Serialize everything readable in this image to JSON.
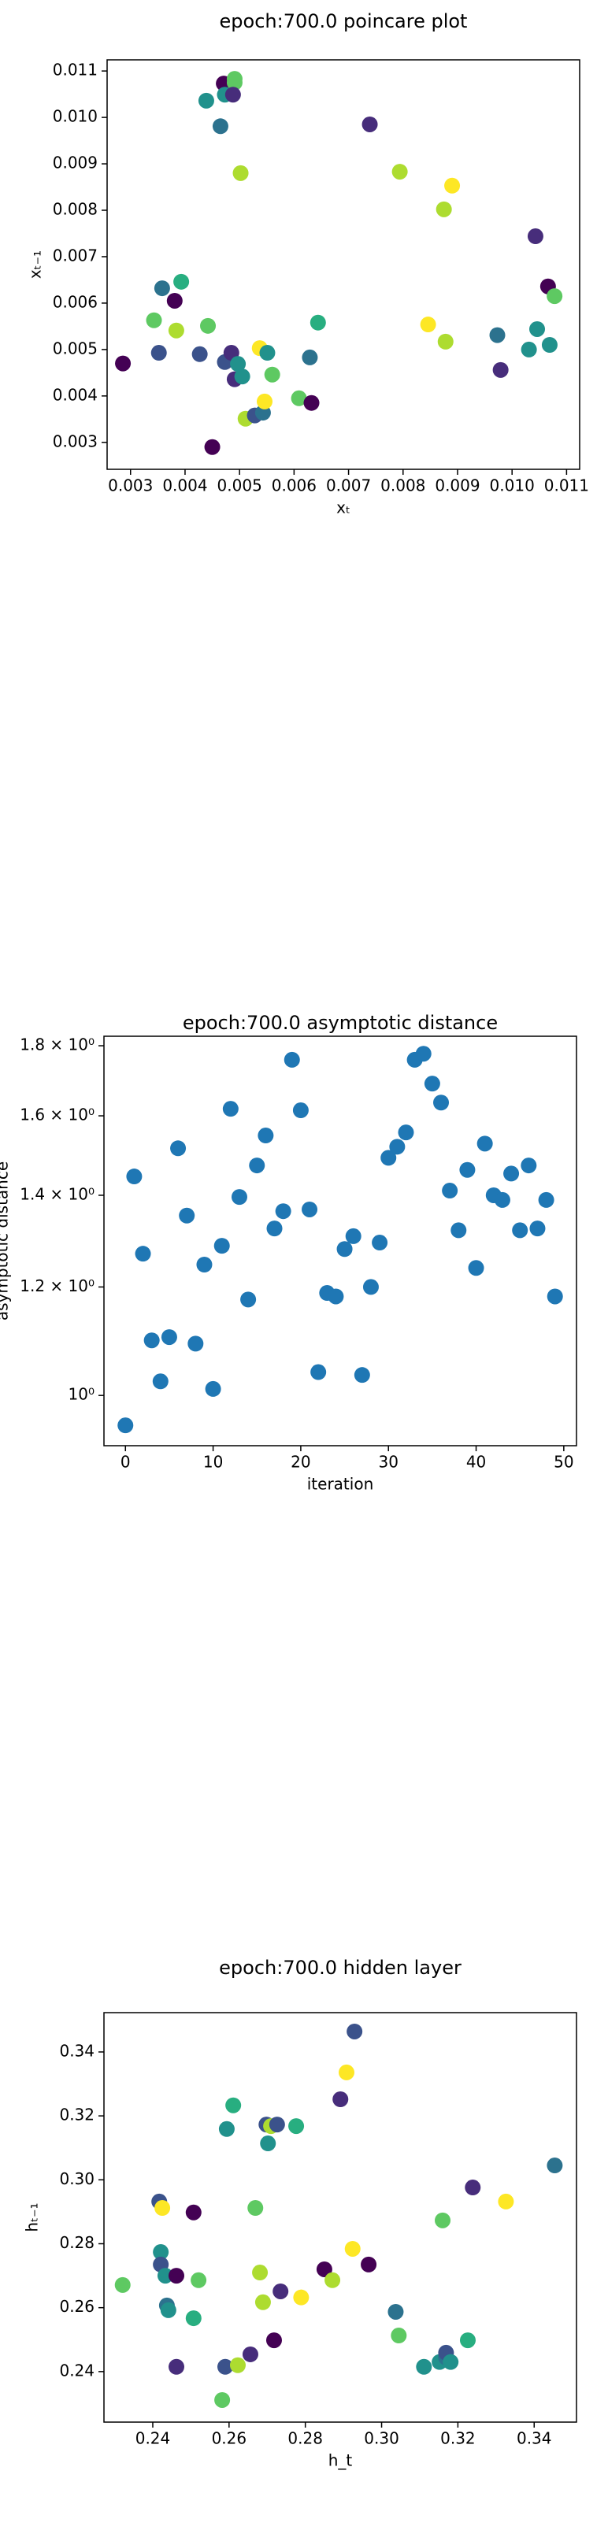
{
  "chart_data": [
    {
      "type": "scatter",
      "title": "epoch:700.0 poincare plot",
      "xlabel": "xₜ",
      "ylabel": "xₜ₋₁",
      "x": [
        0.00286,
        0.00352,
        0.00358,
        0.00343,
        0.00381,
        0.00384,
        0.00393,
        0.00427,
        0.00442,
        0.00439,
        0.0045,
        0.00465,
        0.00471,
        0.00473,
        0.00491,
        0.00491,
        0.00488,
        0.00502,
        0.00473,
        0.00485,
        0.00491,
        0.00497,
        0.00505,
        0.00511,
        0.00528,
        0.00537,
        0.00543,
        0.00551,
        0.00546,
        0.0056,
        0.00609,
        0.00629,
        0.00632,
        0.00644,
        0.00739,
        0.00794,
        0.00846,
        0.00875,
        0.0089,
        0.00878,
        0.00973,
        0.00979,
        0.01031,
        0.01043,
        0.01046,
        0.01066,
        0.01078,
        0.01069
      ],
      "values": [
        0.0047,
        0.00493,
        0.00632,
        0.00563,
        0.00605,
        0.00541,
        0.00646,
        0.0049,
        0.00551,
        0.01036,
        0.0029,
        0.00981,
        0.01073,
        0.01049,
        0.01083,
        0.01075,
        0.01049,
        0.0088,
        0.00473,
        0.00493,
        0.00436,
        0.00469,
        0.00442,
        0.00351,
        0.00358,
        0.00503,
        0.00364,
        0.00493,
        0.00388,
        0.00446,
        0.00395,
        0.00483,
        0.00385,
        0.00558,
        0.00985,
        0.00883,
        0.00554,
        0.00802,
        0.00853,
        0.00517,
        0.00531,
        0.00456,
        0.005,
        0.00744,
        0.00544,
        0.00636,
        0.00615,
        0.0051
      ],
      "colors": [
        "#440154",
        "#3b528b",
        "#2c728e",
        "#5ec962",
        "#440154",
        "#addc30",
        "#28ae80",
        "#3b528b",
        "#5ec962",
        "#21918c",
        "#440154",
        "#2c728e",
        "#440154",
        "#21918c",
        "#5ec962",
        "#5ec962",
        "#472d7b",
        "#addc30",
        "#3b528b",
        "#472d7b",
        "#472d7b",
        "#21918c",
        "#21918c",
        "#addc30",
        "#3b528b",
        "#fde725",
        "#2c728e",
        "#21918c",
        "#fde725",
        "#5ec962",
        "#5ec962",
        "#2c728e",
        "#440154",
        "#28ae80",
        "#472d7b",
        "#addc30",
        "#fde725",
        "#addc30",
        "#fde725",
        "#addc30",
        "#2c728e",
        "#472d7b",
        "#21918c",
        "#472d7b",
        "#21918c",
        "#440154",
        "#5ec962",
        "#21918c"
      ],
      "xlim": [
        0.00257,
        0.01124
      ],
      "ylim": [
        0.00242,
        0.01124
      ],
      "xticks": [
        0.003,
        0.004,
        0.005,
        0.006,
        0.007,
        0.008,
        0.009,
        {
          "value": 0.01,
          "label": "0.010"
        },
        0.011
      ],
      "yticks": [
        0.003,
        0.004,
        0.005,
        0.006,
        0.007,
        0.008,
        0.009,
        {
          "value": 0.01,
          "label": "0.010"
        },
        0.011
      ]
    },
    {
      "type": "scatter",
      "title": "epoch:700.0 asymptotic distance",
      "xlabel": "iteration",
      "ylabel": "asymptotic distance",
      "color": "#1f77b4",
      "log_y": true,
      "x": [
        0,
        1,
        2,
        3,
        4,
        5,
        6,
        7,
        8,
        9,
        10,
        11,
        12,
        13,
        14,
        15,
        16,
        17,
        18,
        19,
        20,
        21,
        22,
        23,
        24,
        25,
        26,
        27,
        28,
        29,
        30,
        31,
        32,
        33,
        34,
        35,
        36,
        37,
        38,
        39,
        40,
        41,
        42,
        43,
        44,
        45,
        46,
        47,
        48,
        49
      ],
      "values": [
        0.951,
        1.445,
        1.269,
        1.097,
        1.024,
        1.103,
        1.515,
        1.353,
        1.091,
        1.246,
        1.011,
        1.286,
        1.619,
        1.396,
        1.175,
        1.472,
        1.548,
        1.324,
        1.363,
        1.758,
        1.615,
        1.367,
        1.04,
        1.188,
        1.181,
        1.279,
        1.307,
        1.035,
        1.2,
        1.293,
        1.491,
        1.519,
        1.556,
        1.758,
        1.776,
        1.689,
        1.636,
        1.411,
        1.32,
        1.461,
        1.239,
        1.527,
        1.4,
        1.389,
        1.452,
        1.32,
        1.472,
        1.324,
        1.389,
        1.181
      ],
      "xlim": [
        -2.45,
        51.45
      ],
      "ylim": [
        0.919,
        1.829
      ],
      "xticks": [
        0,
        10,
        20,
        30,
        40,
        50
      ],
      "yticks": [
        {
          "value": 1,
          "label": "10⁰"
        },
        {
          "value": 1.2,
          "label": "1.2 × 10⁰"
        },
        {
          "value": 1.4,
          "label": "1.4 × 10⁰"
        },
        {
          "value": 1.6,
          "label": "1.6 × 10⁰"
        },
        {
          "value": 1.8,
          "label": "1.8 × 10⁰"
        }
      ]
    },
    {
      "type": "scatter",
      "title": "epoch:700.0 hidden layer",
      "xlabel": "h_t",
      "ylabel": "hₜ₋₁",
      "x": [
        0.2321,
        0.2417,
        0.2425,
        0.2421,
        0.2421,
        0.2433,
        0.2437,
        0.2441,
        0.2462,
        0.2462,
        0.2507,
        0.2507,
        0.252,
        0.2582,
        0.259,
        0.2594,
        0.2611,
        0.2623,
        0.2656,
        0.2669,
        0.2681,
        0.2689,
        0.2698,
        0.2702,
        0.271,
        0.2718,
        0.2726,
        0.2735,
        0.2776,
        0.2789,
        0.285,
        0.2871,
        0.2892,
        0.2908,
        0.2924,
        0.2929,
        0.2966,
        0.3037,
        0.3045,
        0.3111,
        0.3152,
        0.3169,
        0.3169,
        0.3181,
        0.316,
        0.3226,
        0.3239,
        0.3326,
        0.3454
      ],
      "values": [
        0.2671,
        0.2932,
        0.2912,
        0.2774,
        0.2735,
        0.27,
        0.2607,
        0.2592,
        0.27,
        0.2415,
        0.2898,
        0.2567,
        0.2686,
        0.2311,
        0.2415,
        0.3159,
        0.3233,
        0.242,
        0.2454,
        0.2912,
        0.271,
        0.2617,
        0.3173,
        0.3114,
        0.3168,
        0.2498,
        0.3173,
        0.2651,
        0.3168,
        0.2632,
        0.272,
        0.2686,
        0.3252,
        0.3336,
        0.2784,
        0.3464,
        0.2735,
        0.2587,
        0.2513,
        0.2415,
        0.243,
        0.2444,
        0.2459,
        0.243,
        0.2873,
        0.2498,
        0.2976,
        0.2932,
        0.3045
      ],
      "colors": [
        "#5ec962",
        "#3b528b",
        "#fde725",
        "#21918c",
        "#3b528b",
        "#21918c",
        "#2c728e",
        "#21918c",
        "#440154",
        "#472d7b",
        "#440154",
        "#28ae80",
        "#5ec962",
        "#5ec962",
        "#3b528b",
        "#21918c",
        "#28ae80",
        "#addc30",
        "#472d7b",
        "#5ec962",
        "#addc30",
        "#addc30",
        "#3b528b",
        "#21918c",
        "#addc30",
        "#440154",
        "#3b528b",
        "#472d7b",
        "#28ae80",
        "#fde725",
        "#440154",
        "#addc30",
        "#472d7b",
        "#fde725",
        "#fde725",
        "#3b528b",
        "#440154",
        "#2c728e",
        "#5ec962",
        "#21918c",
        "#21918c",
        "#2c728e",
        "#3b528b",
        "#21918c",
        "#5ec962",
        "#28ae80",
        "#472d7b",
        "#fde725",
        "#2c728e"
      ],
      "xlim": [
        0.2272,
        0.3511
      ],
      "ylim": [
        0.2242,
        0.3523
      ],
      "xticks": [
        0.24,
        0.26,
        0.28,
        {
          "value": 0.3,
          "label": "0.30"
        },
        0.32,
        0.34
      ],
      "yticks": [
        0.24,
        0.26,
        0.28,
        {
          "value": 0.3,
          "label": "0.30"
        },
        0.32,
        0.34
      ]
    }
  ]
}
